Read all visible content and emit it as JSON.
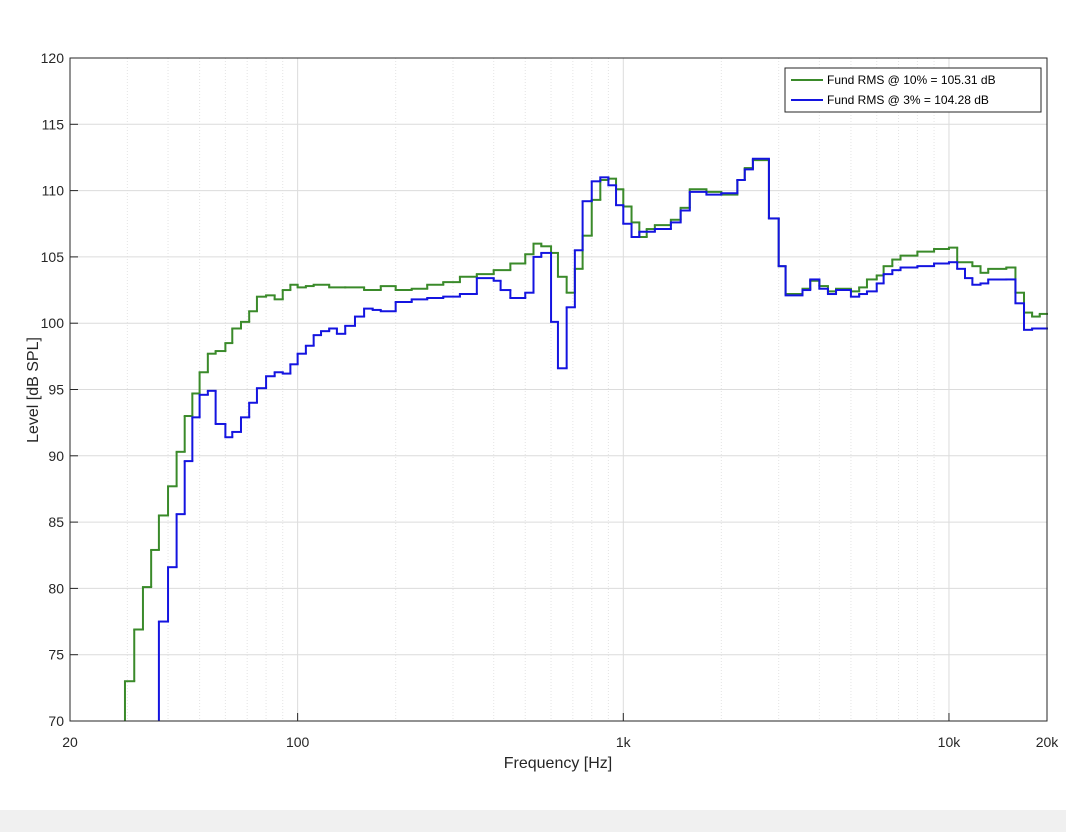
{
  "chart_data": {
    "type": "line",
    "step": "post",
    "xlabel": "Frequency [Hz]",
    "ylabel": "Level [dB SPL]",
    "xscale": "log",
    "xlim": [
      20,
      20000
    ],
    "ylim": [
      70,
      120
    ],
    "xticks": [
      20,
      100,
      {
        "value": 1000,
        "label": "1k"
      },
      {
        "value": 10000,
        "label": "10k"
      },
      {
        "value": 20000,
        "label": "20k"
      }
    ],
    "xminorticks": [
      30,
      40,
      50,
      60,
      70,
      80,
      90,
      200,
      300,
      400,
      500,
      600,
      700,
      800,
      900,
      2000,
      3000,
      4000,
      5000,
      6000,
      7000,
      8000,
      9000
    ],
    "yticks": [
      70,
      75,
      80,
      85,
      90,
      95,
      100,
      105,
      110,
      115,
      120
    ],
    "grid": true,
    "legend": "upper right",
    "series": [
      {
        "name": "Fund RMS @ 10% = 105.31 dB",
        "color": "#3a8a2a",
        "x": [
          29.5,
          31.5,
          33.5,
          35.5,
          37.5,
          40,
          42.5,
          45,
          47.5,
          50,
          53,
          56,
          60,
          63,
          67,
          71,
          75,
          80,
          85,
          90,
          95,
          100,
          106,
          112,
          125,
          140,
          160,
          180,
          200,
          224,
          250,
          280,
          315,
          355,
          400,
          450,
          500,
          530,
          560,
          600,
          630,
          670,
          710,
          750,
          800,
          850,
          900,
          950,
          1000,
          1060,
          1120,
          1180,
          1250,
          1400,
          1500,
          1600,
          1800,
          2000,
          2240,
          2360,
          2500,
          2800,
          3000,
          3150,
          3550,
          3750,
          4000,
          4250,
          4500,
          5000,
          5300,
          5600,
          6000,
          6300,
          6700,
          7100,
          8000,
          9000,
          10000,
          10600,
          11800,
          12500,
          13200,
          15000,
          16000,
          17000,
          18000,
          19000
        ],
        "values": [
          73,
          76.9,
          80.1,
          82.9,
          85.5,
          87.7,
          90.3,
          93,
          94.7,
          96.3,
          97.7,
          97.9,
          98.5,
          99.6,
          100.1,
          100.9,
          102,
          102.1,
          101.8,
          102.5,
          102.9,
          102.7,
          102.8,
          102.9,
          102.7,
          102.7,
          102.5,
          102.8,
          102.5,
          102.6,
          102.9,
          103.1,
          103.5,
          103.7,
          104,
          104.5,
          105.2,
          106,
          105.8,
          105.3,
          103.5,
          102.3,
          104.1,
          106.6,
          109.3,
          110.8,
          110.9,
          110.1,
          108.8,
          107.6,
          106.5,
          107.1,
          107.4,
          107.8,
          108.7,
          110.1,
          109.9,
          109.7,
          110.8,
          111.7,
          112.3,
          107.9,
          104.3,
          102.2,
          102.6,
          103.2,
          102.8,
          102.4,
          102.6,
          102.4,
          102.7,
          103.3,
          103.6,
          104.3,
          104.8,
          105.1,
          105.4,
          105.6,
          105.7,
          104.6,
          104.3,
          103.8,
          104.1,
          104.2,
          102.3,
          100.8,
          100.5,
          100.7
        ]
      },
      {
        "name": "Fund RMS @ 3% = 104.28 dB",
        "color": "#1414e0",
        "x": [
          37.5,
          40,
          42.5,
          45,
          47.5,
          50,
          53,
          56,
          60,
          63,
          67,
          71,
          75,
          80,
          85,
          90,
          95,
          100,
          106,
          112,
          118,
          125,
          132,
          140,
          150,
          160,
          170,
          180,
          200,
          224,
          250,
          280,
          315,
          355,
          400,
          420,
          450,
          500,
          530,
          560,
          600,
          630,
          670,
          710,
          750,
          800,
          850,
          900,
          950,
          1000,
          1060,
          1120,
          1250,
          1400,
          1500,
          1600,
          1800,
          2000,
          2240,
          2360,
          2500,
          2800,
          3000,
          3150,
          3550,
          3750,
          4000,
          4250,
          4500,
          5000,
          5300,
          5600,
          6000,
          6300,
          6700,
          7100,
          8000,
          9000,
          10000,
          10600,
          11200,
          11800,
          12500,
          13200,
          15000,
          16000,
          17000,
          18000,
          19000
        ],
        "values": [
          77.5,
          81.6,
          85.6,
          89.6,
          92.9,
          94.6,
          94.9,
          92.4,
          91.4,
          91.8,
          92.9,
          94,
          95.1,
          96,
          96.3,
          96.2,
          96.9,
          97.7,
          98.3,
          99.1,
          99.4,
          99.6,
          99.2,
          99.8,
          100.5,
          101.1,
          101,
          100.9,
          101.6,
          101.8,
          101.9,
          102,
          102.2,
          103.4,
          103.2,
          102.5,
          101.9,
          102.3,
          105,
          105.3,
          100.1,
          96.6,
          101.2,
          105.5,
          109.2,
          110.7,
          111,
          110.4,
          108.9,
          107.5,
          106.5,
          106.9,
          107.1,
          107.6,
          108.5,
          109.9,
          109.7,
          109.8,
          110.8,
          111.6,
          112.4,
          107.9,
          104.3,
          102.1,
          102.5,
          103.3,
          102.6,
          102.2,
          102.5,
          102,
          102.2,
          102.4,
          103,
          103.7,
          104,
          104.2,
          104.3,
          104.5,
          104.6,
          104.1,
          103.4,
          102.9,
          103,
          103.3,
          103.3,
          101.5,
          99.5,
          99.6,
          99.6
        ]
      }
    ]
  }
}
